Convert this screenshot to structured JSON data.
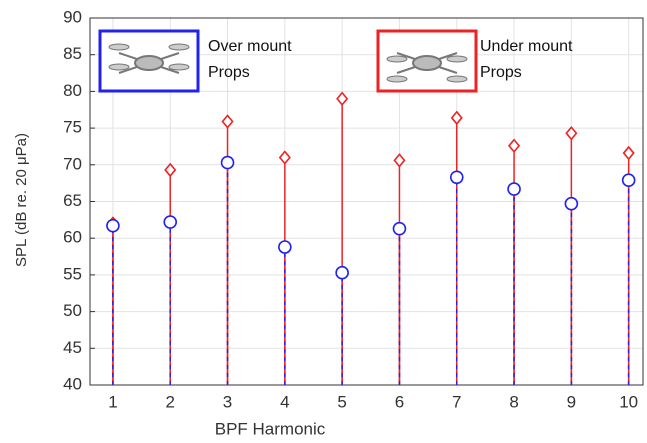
{
  "chart_data": {
    "type": "stem",
    "x_label": "BPF Harmonic",
    "y_label": "SPL (dB re. 20 μPa)",
    "x": [
      1,
      2,
      3,
      4,
      5,
      6,
      7,
      8,
      9,
      10
    ],
    "series": [
      {
        "name": "Over mount Props",
        "color": "#2222ee",
        "marker": "circle",
        "values": [
          61.7,
          62.2,
          70.3,
          58.8,
          55.3,
          61.3,
          68.3,
          66.7,
          64.7,
          67.9
        ]
      },
      {
        "name": "Under mount Props",
        "color": "#ee2222",
        "marker": "diamond",
        "values": [
          62.0,
          69.3,
          75.9,
          71.0,
          79.0,
          70.6,
          76.4,
          72.6,
          74.3,
          71.6
        ]
      }
    ],
    "xlim": [
      0.6,
      10.25
    ],
    "xticks": [
      1,
      2,
      3,
      4,
      5,
      6,
      7,
      8,
      9,
      10
    ],
    "ylim": [
      40,
      90
    ],
    "yticks": [
      40,
      45,
      50,
      55,
      60,
      65,
      70,
      75,
      80,
      85,
      90
    ],
    "grid": true
  }
}
